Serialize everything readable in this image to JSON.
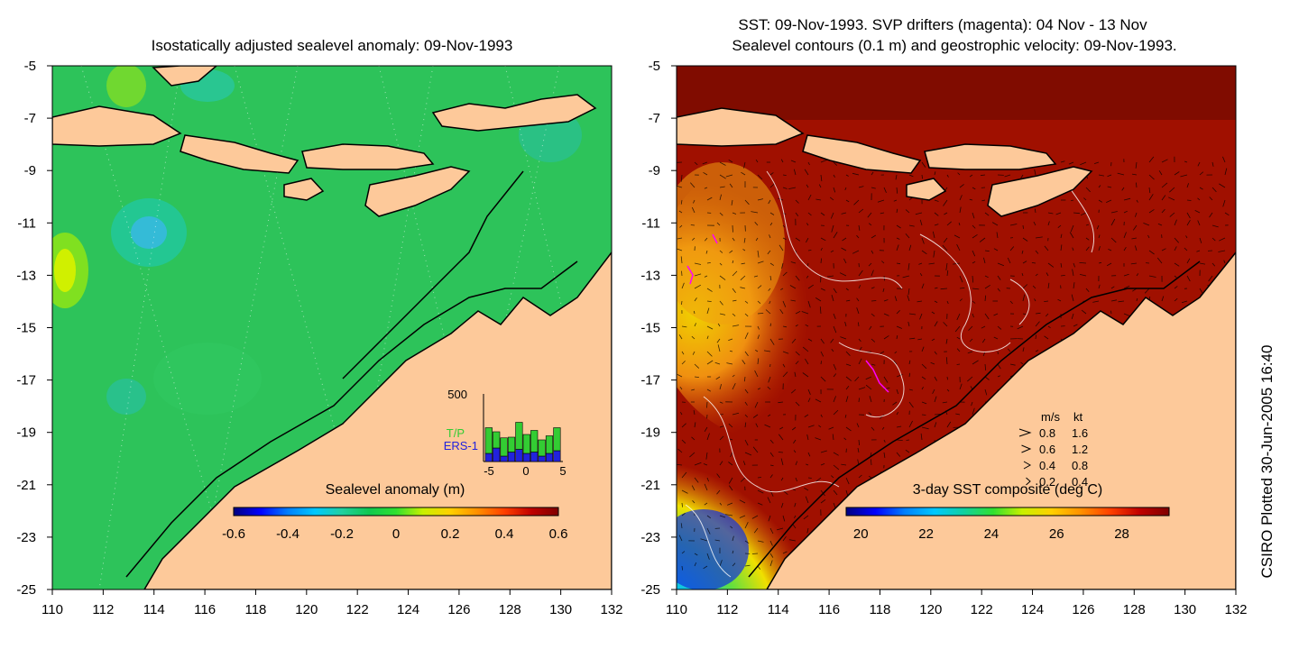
{
  "left_panel": {
    "title": "Isostatically adjusted sealevel anomaly: 09-Nov-1993",
    "colorbar": {
      "label": "Sealevel anomaly (m)",
      "ticks": [
        "-0.6",
        "-0.4",
        "-0.2",
        "0",
        "0.2",
        "0.4",
        "0.6"
      ],
      "colors": [
        "#00007f",
        "#0000ff",
        "#007fff",
        "#00c8ff",
        "#20d0a0",
        "#10c850",
        "#30e030",
        "#c8f000",
        "#ffd000",
        "#ff9000",
        "#ff4000",
        "#c00000",
        "#7f0000"
      ]
    },
    "inset": {
      "ymax_label": "500",
      "xticks": [
        "-5",
        "0",
        "5"
      ],
      "legend": [
        {
          "name": "T/P",
          "color": "#33cc33"
        },
        {
          "name": "ERS-1",
          "color": "#2222dd"
        }
      ],
      "tp_counts": [
        190,
        120,
        135,
        110,
        200,
        140,
        160,
        120,
        130,
        170
      ],
      "ers_counts": [
        60,
        100,
        40,
        70,
        90,
        60,
        70,
        40,
        60,
        80
      ]
    },
    "field_color": "#2dc35a"
  },
  "right_panel": {
    "title_line1": "SST: 09-Nov-1993. SVP drifters (magenta): 04 Nov - 13 Nov",
    "title_line2": "Sealevel contours (0.1 m) and geostrophic velocity: 09-Nov-1993.",
    "colorbar": {
      "label": "3-day SST composite (deg C)",
      "ticks": [
        "20",
        "22",
        "24",
        "26",
        "28"
      ],
      "colors": [
        "#00007f",
        "#0000ff",
        "#0080ff",
        "#00c8ff",
        "#10d0a0",
        "#30e030",
        "#c8f000",
        "#ffd000",
        "#ff9000",
        "#ff4000",
        "#c00000",
        "#7f0000"
      ]
    },
    "speed_legend": {
      "header_ms": "m/s",
      "header_kt": "kt",
      "rows": [
        {
          "ms": "0.8",
          "kt": "1.6"
        },
        {
          "ms": "0.6",
          "kt": "1.2"
        },
        {
          "ms": "0.4",
          "kt": "0.8"
        },
        {
          "ms": "0.2",
          "kt": "0.4"
        }
      ]
    }
  },
  "axes": {
    "lat_ticks": [
      "-5",
      "-7",
      "-9",
      "-11",
      "-13",
      "-15",
      "-17",
      "-19",
      "-21",
      "-23",
      "-25"
    ],
    "lon_ticks": [
      "110",
      "112",
      "114",
      "116",
      "118",
      "120",
      "122",
      "124",
      "126",
      "128",
      "130",
      "132"
    ],
    "lon_range": [
      110,
      132
    ],
    "lat_range": [
      -25,
      -5
    ]
  },
  "side_label": "CSIRO Plotted 30-Jun-2005 16:40",
  "colors": {
    "land": "#fdc99a",
    "coast": "#000000",
    "sst_warm": "#a01000",
    "sst_mid": "#e07010",
    "sst_cool": "#40c0ff"
  }
}
